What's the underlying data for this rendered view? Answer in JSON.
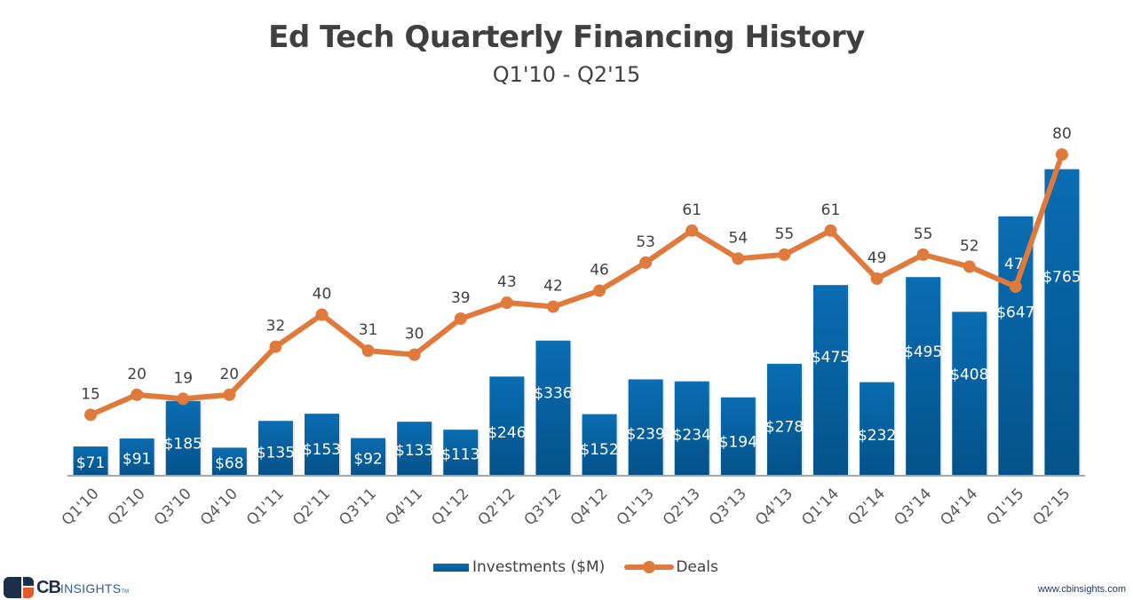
{
  "chart_data": {
    "type": "bar",
    "title": "Ed Tech Quarterly Financing History",
    "subtitle": "Q1'10 - Q2'15",
    "xlabel": "",
    "ylabel": "",
    "categories": [
      "Q1'10",
      "Q2'10",
      "Q3'10",
      "Q4'10",
      "Q1'11",
      "Q2'11",
      "Q3'11",
      "Q4'11",
      "Q1'12",
      "Q2'12",
      "Q3'12",
      "Q4'12",
      "Q1'13",
      "Q2'13",
      "Q3'13",
      "Q4'13",
      "Q1'14",
      "Q2'14",
      "Q3'14",
      "Q4'14",
      "Q1'15",
      "Q2'15"
    ],
    "series": [
      {
        "name": "Investments ($M)",
        "type": "bar",
        "axis": "left",
        "color": "#0668ab",
        "label_prefix": "$",
        "values": [
          71,
          91,
          185,
          68,
          135,
          153,
          92,
          133,
          113,
          246,
          336,
          152,
          239,
          234,
          194,
          278,
          475,
          232,
          495,
          408,
          647,
          765
        ]
      },
      {
        "name": "Deals",
        "type": "line",
        "axis": "right",
        "color": "#e07a3c",
        "label_prefix": "",
        "values": [
          15,
          20,
          19,
          20,
          32,
          40,
          31,
          30,
          39,
          43,
          42,
          46,
          53,
          61,
          54,
          55,
          61,
          49,
          55,
          52,
          47,
          80
        ]
      }
    ],
    "ylim_left": [
      0,
      933
    ],
    "ylim_right": [
      0,
      93.1
    ],
    "grid": false,
    "y_axis_visible": false,
    "legend_position": "bottom-center",
    "data_labels": true
  },
  "footer": {
    "logo_cb": "CB",
    "logo_insights": "INSIGHTS",
    "logo_tm": "TM",
    "url": "www.cbinsights.com"
  }
}
